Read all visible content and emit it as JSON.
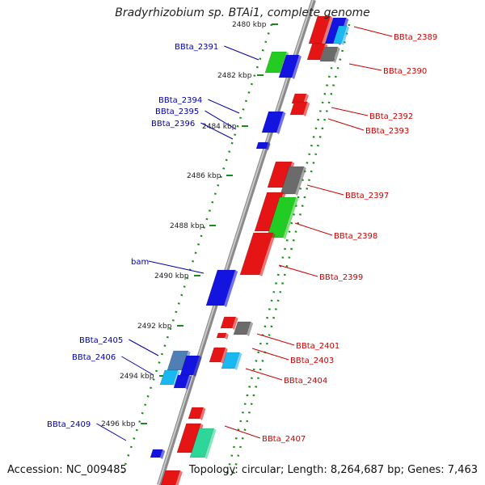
{
  "title": "Bradyrhizobium sp. BTAi1, complete genome",
  "footer": {
    "accession": "Accession: NC_009485",
    "summary": "Topology: circular; Length: 8,264,687 bp; Genes: 7,463"
  },
  "scale_labels": [
    "2480 kbp",
    "2482 kbp",
    "2484 kbp",
    "2486 kbp",
    "2488 kbp",
    "2490 kbp",
    "2492 kbp",
    "2494 kbp",
    "2496 kbp"
  ],
  "genes_left": [
    "BBta_2391",
    "BBta_2394",
    "BBta_2395",
    "BBta_2396",
    "bam",
    "BBta_2405",
    "BBta_2406",
    "BBta_2409"
  ],
  "genes_right": [
    "BBta_2389",
    "BBta_2390",
    "BBta_2392",
    "BBta_2393",
    "BBta_2397",
    "BBta_2398",
    "BBta_2399",
    "BBta_2401",
    "BBta_2403",
    "BBta_2404",
    "BBta_2407"
  ],
  "colors": {
    "forward_strand": "#e51515",
    "reverse_strand": "#1414e0",
    "left_label": "#0000aa",
    "right_label": "#cc0000",
    "backbone": "#8a8a8a",
    "tick": "#1a8a1a",
    "green_gene": "#22cc22",
    "grey_gene": "#6b6b6b",
    "cyan_gene": "#19b8f0",
    "teal_gene": "#2fd699",
    "steel_gene": "#4f7fb5"
  }
}
